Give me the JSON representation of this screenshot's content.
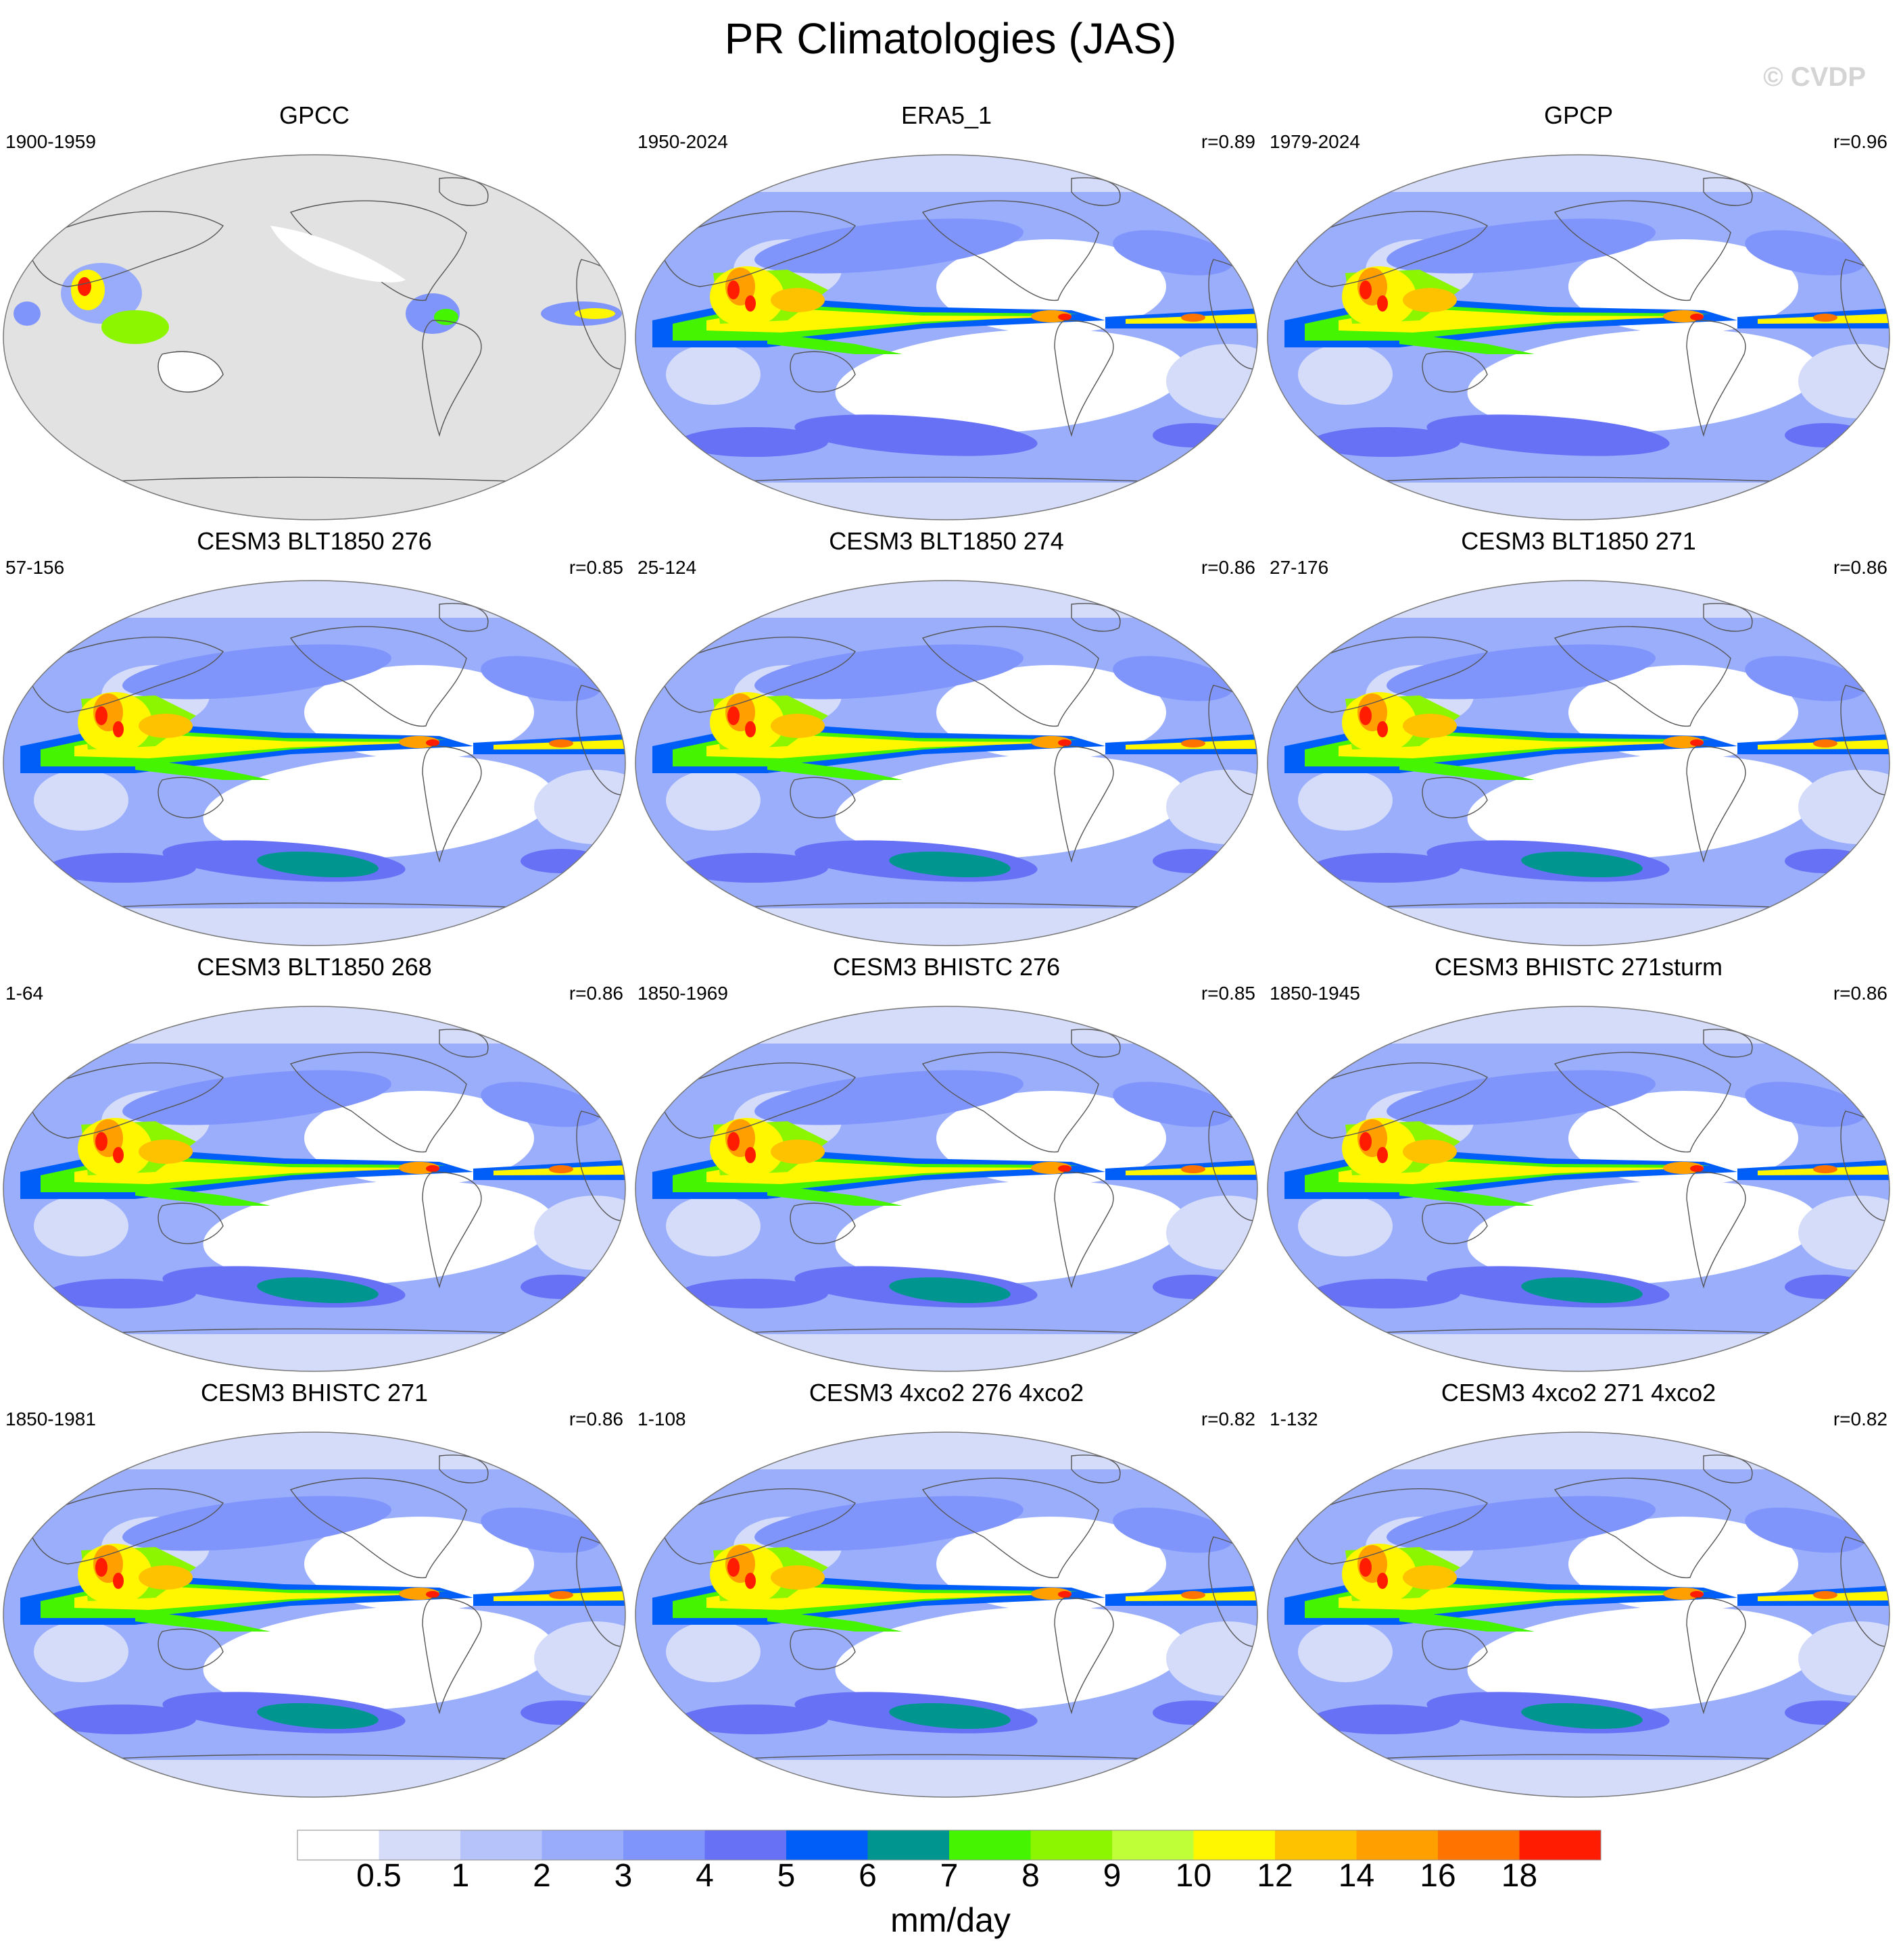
{
  "title": "PR Climatologies (JAS)",
  "watermark": "© CVDP",
  "panels": [
    {
      "title": "GPCC",
      "period": "1900-1959",
      "corr": "",
      "style": "obs-land"
    },
    {
      "title": "ERA5_1",
      "period": "1950-2024",
      "corr": "r=0.89",
      "style": "obs"
    },
    {
      "title": "GPCP",
      "period": "1979-2024",
      "corr": "r=0.96",
      "style": "obs"
    },
    {
      "title": "CESM3 BLT1850 276",
      "period": "57-156",
      "corr": "r=0.85",
      "style": "model"
    },
    {
      "title": "CESM3 BLT1850 274",
      "period": "25-124",
      "corr": "r=0.86",
      "style": "model"
    },
    {
      "title": "CESM3 BLT1850 271",
      "period": "27-176",
      "corr": "r=0.86",
      "style": "model"
    },
    {
      "title": "CESM3 BLT1850 268",
      "period": "1-64",
      "corr": "r=0.86",
      "style": "model"
    },
    {
      "title": "CESM3 BHISTC 276",
      "period": "1850-1969",
      "corr": "r=0.85",
      "style": "model"
    },
    {
      "title": "CESM3 BHISTC 271sturm",
      "period": "1850-1945",
      "corr": "r=0.86",
      "style": "model"
    },
    {
      "title": "CESM3 BHISTC 271",
      "period": "1850-1981",
      "corr": "r=0.86",
      "style": "model"
    },
    {
      "title": "CESM3 4xco2 276 4xco2",
      "period": "1-108",
      "corr": "r=0.82",
      "style": "model"
    },
    {
      "title": "CESM3 4xco2 271 4xco2",
      "period": "1-132",
      "corr": "r=0.82",
      "style": "model"
    }
  ],
  "colorbar": {
    "unit": "mm/day",
    "labels": [
      "0.5",
      "1",
      "2",
      "3",
      "4",
      "5",
      "6",
      "7",
      "8",
      "9",
      "10",
      "12",
      "14",
      "16",
      "18"
    ],
    "colors": [
      "#ffffff",
      "#d5dcf9",
      "#b6c3fa",
      "#98acfb",
      "#8095fb",
      "#6671f6",
      "#005ef8",
      "#00968f",
      "#44f400",
      "#8cf500",
      "#beff38",
      "#fff700",
      "#ffc200",
      "#ff9f00",
      "#ff7300",
      "#ff1c00"
    ]
  }
}
